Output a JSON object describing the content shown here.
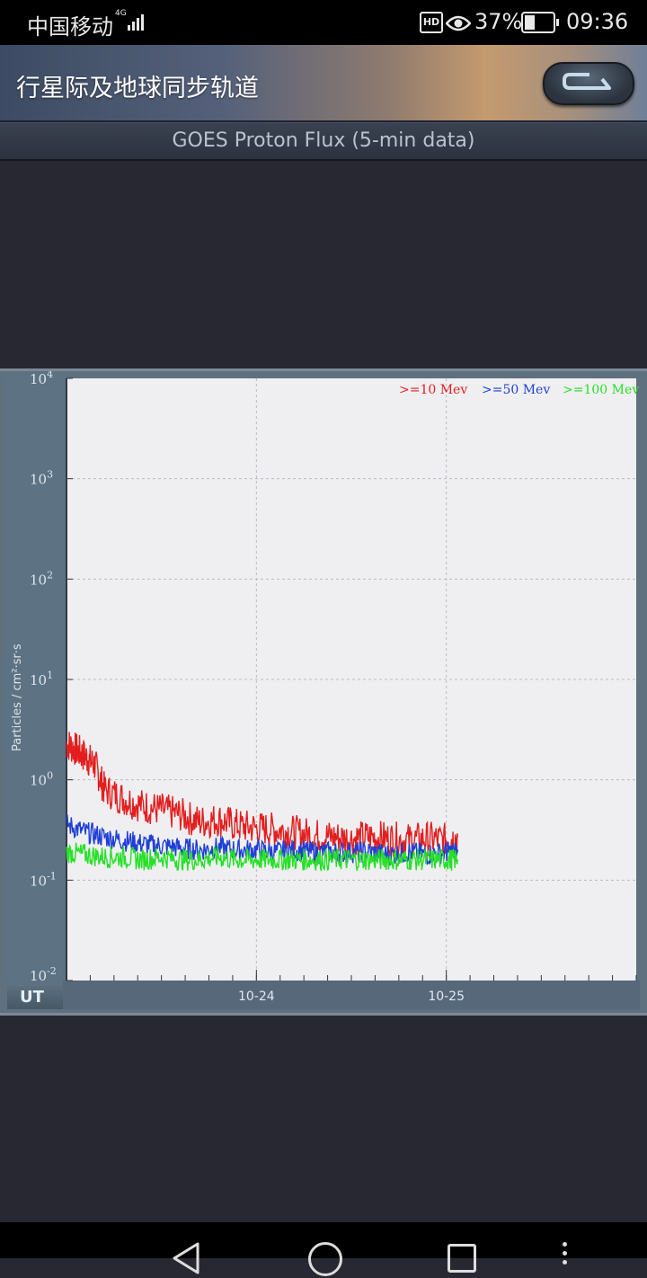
{
  "status_bar": {
    "carrier": "中国移动",
    "network": "4G",
    "hd_badge": "HD",
    "battery_percent": "37%",
    "battery_level": 0.37,
    "time": "09:36"
  },
  "header": {
    "title": "行星际及地球同步轨道",
    "back_icon": "back-arrow-icon"
  },
  "subtitle": "GOES Proton Flux (5-min data)",
  "chart_data": {
    "type": "line",
    "ylabel": "Particles / cm²·sr·s",
    "xlabel": "UT",
    "yscale": "log",
    "ylim": [
      0.01,
      10000
    ],
    "y_ticks": [
      {
        "base": "10",
        "exp": "4"
      },
      {
        "base": "10",
        "exp": "3"
      },
      {
        "base": "10",
        "exp": "2"
      },
      {
        "base": "10",
        "exp": "1"
      },
      {
        "base": "10",
        "exp": "0"
      },
      {
        "base": "10",
        "exp": "-1"
      },
      {
        "base": "10",
        "exp": "-2"
      }
    ],
    "x_tick_labels": [
      "10-24",
      "10-25"
    ],
    "xlim_days": [
      22.0,
      25.0
    ],
    "x_label_positions_days": [
      23.0,
      24.0
    ],
    "grid": true,
    "legend_position": "top-right",
    "series": [
      {
        "name": ">=10 Mev",
        "color": "#e41e1e",
        "x": [
          22.0,
          22.05,
          22.1,
          22.15,
          22.2,
          22.3,
          22.4,
          22.5,
          22.6,
          22.7,
          22.8,
          22.9,
          23.0,
          23.1,
          23.2,
          23.3,
          23.4,
          23.5,
          23.6,
          23.7,
          23.8,
          23.9,
          24.0,
          24.06
        ],
        "y": [
          2.3,
          2.0,
          1.7,
          1.4,
          0.8,
          0.65,
          0.55,
          0.5,
          0.45,
          0.38,
          0.4,
          0.35,
          0.33,
          0.32,
          0.3,
          0.28,
          0.27,
          0.26,
          0.27,
          0.26,
          0.25,
          0.26,
          0.25,
          0.27
        ]
      },
      {
        "name": ">=50 Mev",
        "color": "#1f3fd6",
        "x": [
          22.0,
          22.1,
          22.2,
          22.3,
          22.4,
          22.5,
          22.6,
          22.7,
          22.8,
          22.9,
          23.0,
          23.1,
          23.2,
          23.3,
          23.4,
          23.5,
          23.6,
          23.7,
          23.8,
          23.9,
          24.0,
          24.06
        ],
        "y": [
          0.36,
          0.3,
          0.27,
          0.25,
          0.23,
          0.22,
          0.21,
          0.2,
          0.21,
          0.2,
          0.2,
          0.19,
          0.2,
          0.19,
          0.19,
          0.19,
          0.19,
          0.18,
          0.19,
          0.18,
          0.19,
          0.19
        ]
      },
      {
        "name": ">=100 Mev",
        "color": "#27e027",
        "x": [
          22.0,
          22.1,
          22.2,
          22.3,
          22.4,
          22.5,
          22.6,
          22.7,
          22.8,
          22.9,
          23.0,
          23.1,
          23.2,
          23.3,
          23.4,
          23.5,
          23.6,
          23.7,
          23.8,
          23.9,
          24.0,
          24.06
        ],
        "y": [
          0.19,
          0.18,
          0.17,
          0.17,
          0.16,
          0.17,
          0.16,
          0.16,
          0.17,
          0.16,
          0.16,
          0.16,
          0.16,
          0.16,
          0.16,
          0.16,
          0.16,
          0.16,
          0.16,
          0.16,
          0.16,
          0.16
        ]
      }
    ]
  }
}
